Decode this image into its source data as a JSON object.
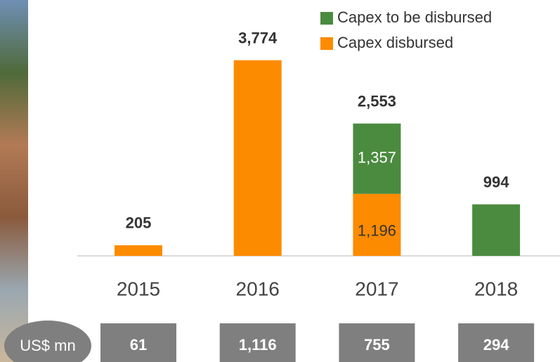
{
  "chart_data": {
    "type": "stacked_bar",
    "categories": [
      "2015",
      "2016",
      "2017",
      "2018"
    ],
    "series": [
      {
        "name": "Capex disbursed",
        "color": "#fd8b00",
        "values": [
          205,
          3774,
          1196,
          null
        ],
        "value_labels": [
          null,
          null,
          "1,196",
          null
        ]
      },
      {
        "name": "Capex to be disbursed",
        "color": "#4b8b3f",
        "values": [
          null,
          null,
          1357,
          994
        ],
        "value_labels": [
          null,
          null,
          "1,357",
          null
        ]
      }
    ],
    "totals": {
      "values": [
        205,
        3774,
        2553,
        994
      ],
      "value_labels": [
        "205",
        "3,774",
        "2,553",
        "994"
      ]
    },
    "usd_mn": {
      "label": "US$ mn",
      "values": [
        61,
        1116,
        755,
        294
      ],
      "value_labels": [
        "61",
        "1,116",
        "755",
        "294"
      ]
    },
    "ylim": [
      0,
      4000
    ]
  }
}
